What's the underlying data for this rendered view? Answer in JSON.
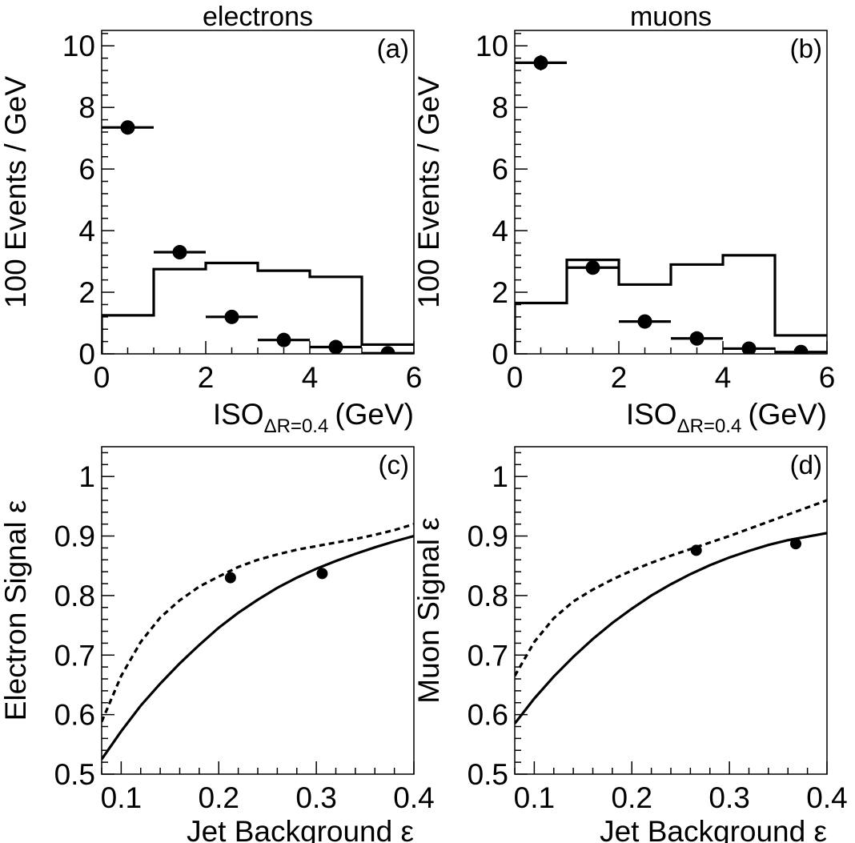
{
  "chart_data": [
    {
      "id": "a",
      "type": "histogram+scatter",
      "title": "electrons",
      "panel_label": "(a)",
      "xlabel": "ISO",
      "xlabel_sub": "ΔR=0.4",
      "xlabel_unit": "(GeV)",
      "ylabel": "100 Events / GeV",
      "xlim": [
        0,
        6
      ],
      "ylim": [
        0,
        10.5
      ],
      "xticks": [
        0,
        2,
        4,
        6
      ],
      "yticks": [
        0,
        2,
        4,
        6,
        8,
        10
      ],
      "histogram": {
        "bin_edges": [
          0,
          1,
          2,
          3,
          4,
          5,
          6
        ],
        "values": [
          1.25,
          2.75,
          2.95,
          2.7,
          2.5,
          0.3
        ]
      },
      "points": {
        "x": [
          0.5,
          1.5,
          2.5,
          3.5,
          4.5,
          5.5
        ],
        "y": [
          7.35,
          3.3,
          1.2,
          0.45,
          0.22,
          0.02
        ],
        "xerr": 0.5,
        "yerr": [
          0.15,
          0.1,
          0.07,
          0.05,
          0.04,
          0.02
        ]
      }
    },
    {
      "id": "b",
      "type": "histogram+scatter",
      "title": "muons",
      "panel_label": "(b)",
      "xlabel": "ISO",
      "xlabel_sub": "ΔR=0.4",
      "xlabel_unit": "(GeV)",
      "ylabel": "100 Events / GeV",
      "xlim": [
        0,
        6
      ],
      "ylim": [
        0,
        10.5
      ],
      "xticks": [
        0,
        2,
        4,
        6
      ],
      "yticks": [
        0,
        2,
        4,
        6,
        8,
        10
      ],
      "histogram": {
        "bin_edges": [
          0,
          1,
          2,
          3,
          4,
          5,
          6
        ],
        "values": [
          1.65,
          3.05,
          2.25,
          2.9,
          3.2,
          0.6
        ]
      },
      "points": {
        "x": [
          0.5,
          1.5,
          2.5,
          3.5,
          4.5,
          5.5
        ],
        "y": [
          9.45,
          2.8,
          1.05,
          0.5,
          0.17,
          0.06
        ],
        "xerr": 0.5,
        "yerr": [
          0.25,
          0.12,
          0.07,
          0.05,
          0.03,
          0.02
        ]
      }
    },
    {
      "id": "c",
      "type": "line",
      "panel_label": "(c)",
      "xlabel": "Jet Background ε",
      "ylabel": "Electron Signal ε",
      "xlim": [
        0.08,
        0.4
      ],
      "ylim": [
        0.5,
        1.05
      ],
      "xticks": [
        0.1,
        0.2,
        0.3,
        0.4
      ],
      "yticks": [
        0.5,
        0.6,
        0.7,
        0.8,
        0.9,
        1.0
      ],
      "ytick_labels": [
        "0.5",
        "0.6",
        "0.7",
        "0.8",
        "0.9",
        "1"
      ],
      "series": [
        {
          "style": "solid",
          "x": [
            0.08,
            0.1,
            0.12,
            0.14,
            0.16,
            0.18,
            0.2,
            0.22,
            0.24,
            0.26,
            0.28,
            0.3,
            0.32,
            0.34,
            0.36,
            0.38,
            0.4
          ],
          "y": [
            0.525,
            0.572,
            0.615,
            0.652,
            0.686,
            0.717,
            0.746,
            0.771,
            0.793,
            0.813,
            0.83,
            0.845,
            0.858,
            0.87,
            0.881,
            0.891,
            0.9
          ]
        },
        {
          "style": "dashed",
          "x": [
            0.08,
            0.1,
            0.12,
            0.14,
            0.16,
            0.18,
            0.2,
            0.22,
            0.24,
            0.26,
            0.28,
            0.3,
            0.32,
            0.34,
            0.36,
            0.38,
            0.4
          ],
          "y": [
            0.588,
            0.665,
            0.722,
            0.763,
            0.792,
            0.815,
            0.832,
            0.848,
            0.86,
            0.869,
            0.877,
            0.883,
            0.889,
            0.895,
            0.902,
            0.91,
            0.92
          ]
        }
      ],
      "points": {
        "x": [
          0.212,
          0.306
        ],
        "y": [
          0.83,
          0.837
        ]
      }
    },
    {
      "id": "d",
      "type": "line",
      "panel_label": "(d)",
      "xlabel": "Jet Background ε",
      "ylabel": "Muon Signal ε",
      "xlim": [
        0.08,
        0.4
      ],
      "ylim": [
        0.5,
        1.05
      ],
      "xticks": [
        0.1,
        0.2,
        0.3,
        0.4
      ],
      "yticks": [
        0.5,
        0.6,
        0.7,
        0.8,
        0.9,
        1.0
      ],
      "ytick_labels": [
        "0.5",
        "0.6",
        "0.7",
        "0.8",
        "0.9",
        "1"
      ],
      "series": [
        {
          "style": "solid",
          "x": [
            0.08,
            0.1,
            0.12,
            0.14,
            0.16,
            0.18,
            0.2,
            0.22,
            0.24,
            0.26,
            0.28,
            0.3,
            0.32,
            0.34,
            0.36,
            0.38,
            0.4
          ],
          "y": [
            0.585,
            0.627,
            0.664,
            0.697,
            0.727,
            0.754,
            0.778,
            0.8,
            0.819,
            0.836,
            0.851,
            0.864,
            0.875,
            0.885,
            0.893,
            0.899,
            0.905
          ]
        },
        {
          "style": "dashed",
          "x": [
            0.08,
            0.1,
            0.12,
            0.14,
            0.16,
            0.18,
            0.2,
            0.22,
            0.24,
            0.26,
            0.28,
            0.3,
            0.32,
            0.34,
            0.36,
            0.38,
            0.4
          ],
          "y": [
            0.665,
            0.722,
            0.762,
            0.79,
            0.81,
            0.827,
            0.842,
            0.855,
            0.867,
            0.878,
            0.889,
            0.9,
            0.912,
            0.924,
            0.936,
            0.948,
            0.96
          ]
        }
      ],
      "points": {
        "x": [
          0.266,
          0.368
        ],
        "y": [
          0.876,
          0.887
        ]
      }
    }
  ]
}
